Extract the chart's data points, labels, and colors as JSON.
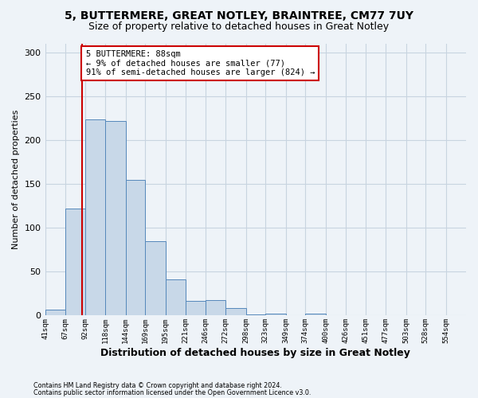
{
  "title1": "5, BUTTERMERE, GREAT NOTLEY, BRAINTREE, CM77 7UY",
  "title2": "Size of property relative to detached houses in Great Notley",
  "xlabel": "Distribution of detached houses by size in Great Notley",
  "ylabel": "Number of detached properties",
  "bar_left_edges": [
    41,
    67,
    92,
    118,
    144,
    169,
    195,
    221,
    246,
    272,
    298,
    323,
    349,
    374,
    400,
    426,
    451,
    477,
    503,
    528
  ],
  "bar_widths": [
    26,
    25,
    26,
    26,
    25,
    26,
    26,
    25,
    26,
    26,
    25,
    26,
    25,
    26,
    26,
    25,
    26,
    26,
    25,
    26
  ],
  "bar_heights": [
    7,
    122,
    224,
    222,
    155,
    85,
    41,
    17,
    18,
    9,
    1,
    2,
    0,
    2,
    0,
    0,
    0,
    0,
    0,
    0
  ],
  "bar_color": "#c8d8e8",
  "bar_edge_color": "#5588bb",
  "tick_labels": [
    "41sqm",
    "67sqm",
    "92sqm",
    "118sqm",
    "144sqm",
    "169sqm",
    "195sqm",
    "221sqm",
    "246sqm",
    "272sqm",
    "298sqm",
    "323sqm",
    "349sqm",
    "374sqm",
    "400sqm",
    "426sqm",
    "451sqm",
    "477sqm",
    "503sqm",
    "528sqm",
    "554sqm"
  ],
  "property_size": 88,
  "red_line_color": "#cc0000",
  "annotation_text": "5 BUTTERMERE: 88sqm\n← 9% of detached houses are smaller (77)\n91% of semi-detached houses are larger (824) →",
  "annotation_box_color": "#ffffff",
  "annotation_box_edge": "#cc0000",
  "ylim": [
    0,
    310
  ],
  "yticks": [
    0,
    50,
    100,
    150,
    200,
    250,
    300
  ],
  "xlim_left": 41,
  "xlim_right": 580,
  "footer1": "Contains HM Land Registry data © Crown copyright and database right 2024.",
  "footer2": "Contains public sector information licensed under the Open Government Licence v3.0.",
  "bg_color": "#eef3f8",
  "plot_bg_color": "#eef3f8",
  "grid_color": "#c8d4e0",
  "title1_fontsize": 10,
  "title2_fontsize": 9,
  "xlabel_fontsize": 9,
  "ylabel_fontsize": 8
}
